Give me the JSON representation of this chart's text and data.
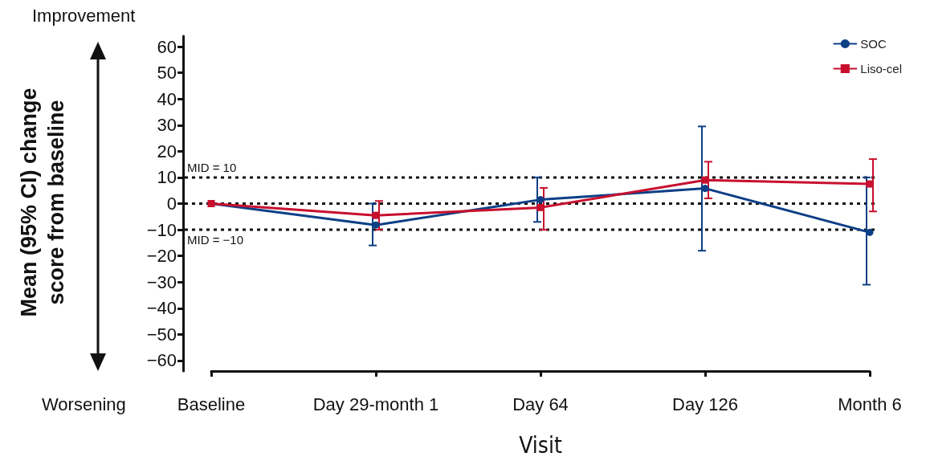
{
  "chart_data": {
    "type": "line",
    "xlabel": "Visit",
    "ylabel": "Mean (95% CI) change score from baseline",
    "categories": [
      "Baseline",
      "Day 29-month 1",
      "Day 64",
      "Day 126",
      "Month 6"
    ],
    "series": [
      {
        "name": "SOC",
        "color": "#0d3f86",
        "marker": "circle",
        "values": [
          0,
          -8.2,
          1.5,
          5.8,
          -11
        ],
        "errors": [
          null,
          [
            -16,
            0
          ],
          [
            -7,
            10
          ],
          [
            -18,
            29.5
          ],
          [
            -31,
            10
          ]
        ]
      },
      {
        "name": "Liso-cel",
        "color": "#c8102e",
        "marker": "square",
        "values": [
          0,
          -4.5,
          -1.5,
          9,
          7.5
        ],
        "errors": [
          null,
          [
            -10,
            1
          ],
          [
            -10,
            6
          ],
          [
            2,
            16
          ],
          [
            -3,
            17
          ]
        ]
      }
    ],
    "ylim": [
      -64,
      64
    ],
    "yticks": [
      -60,
      -50,
      -40,
      -30,
      -20,
      -10,
      0,
      10,
      20,
      30,
      40,
      50,
      60
    ],
    "ref_lines": [
      {
        "axis": "y",
        "value": 10,
        "label": "MID = 10",
        "line_style": "dotted"
      },
      {
        "axis": "y",
        "value": 0,
        "label": null,
        "line_style": "dotted"
      },
      {
        "axis": "y",
        "value": -10,
        "label": "MID = −10",
        "line_style": "dotted"
      }
    ],
    "annotations": [
      "Improvement",
      "Worsening"
    ],
    "grid": false,
    "legend": "top right",
    "line_style": "solid"
  }
}
